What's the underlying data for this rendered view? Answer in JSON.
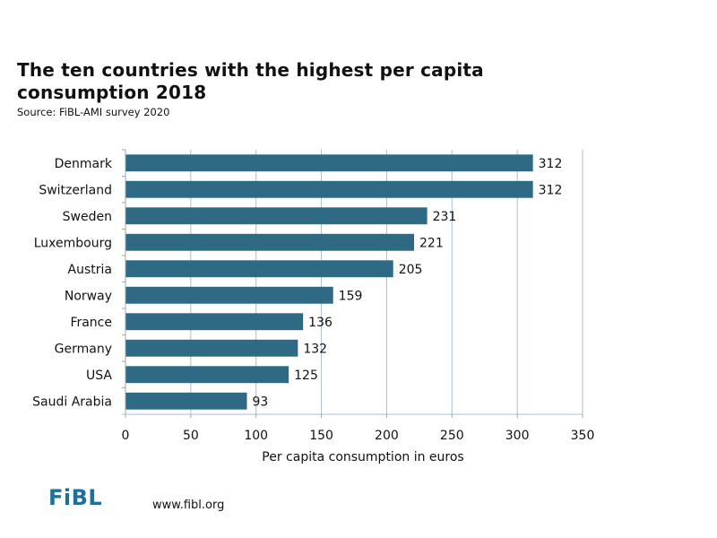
{
  "header": {
    "title": "The ten countries with the highest per capita consumption 2018",
    "subtitle": "Source: FiBL-AMI survey 2020"
  },
  "footer": {
    "logo_text": "FiBL",
    "url": "www.fibl.org"
  },
  "colors": {
    "bar": "#2e6a84",
    "grid": "#a9bfcc",
    "logo": "#1f6f97"
  },
  "chart_data": {
    "type": "bar",
    "orientation": "horizontal",
    "title": "The ten countries with the highest per capita consumption 2018",
    "subtitle": "Source: FiBL-AMI survey 2020",
    "categories": [
      "Denmark",
      "Switzerland",
      "Sweden",
      "Luxembourg",
      "Austria",
      "Norway",
      "France",
      "Germany",
      "USA",
      "Saudi Arabia"
    ],
    "values": [
      312,
      312,
      231,
      221,
      205,
      159,
      136,
      132,
      125,
      93
    ],
    "xlabel": "Per capita consumption in euros",
    "ylabel": "",
    "xlim": [
      0,
      350
    ],
    "xticks": [
      0,
      50,
      100,
      150,
      200,
      250,
      300,
      350
    ],
    "grid": "vertical",
    "data_labels": true,
    "legend": "none"
  }
}
